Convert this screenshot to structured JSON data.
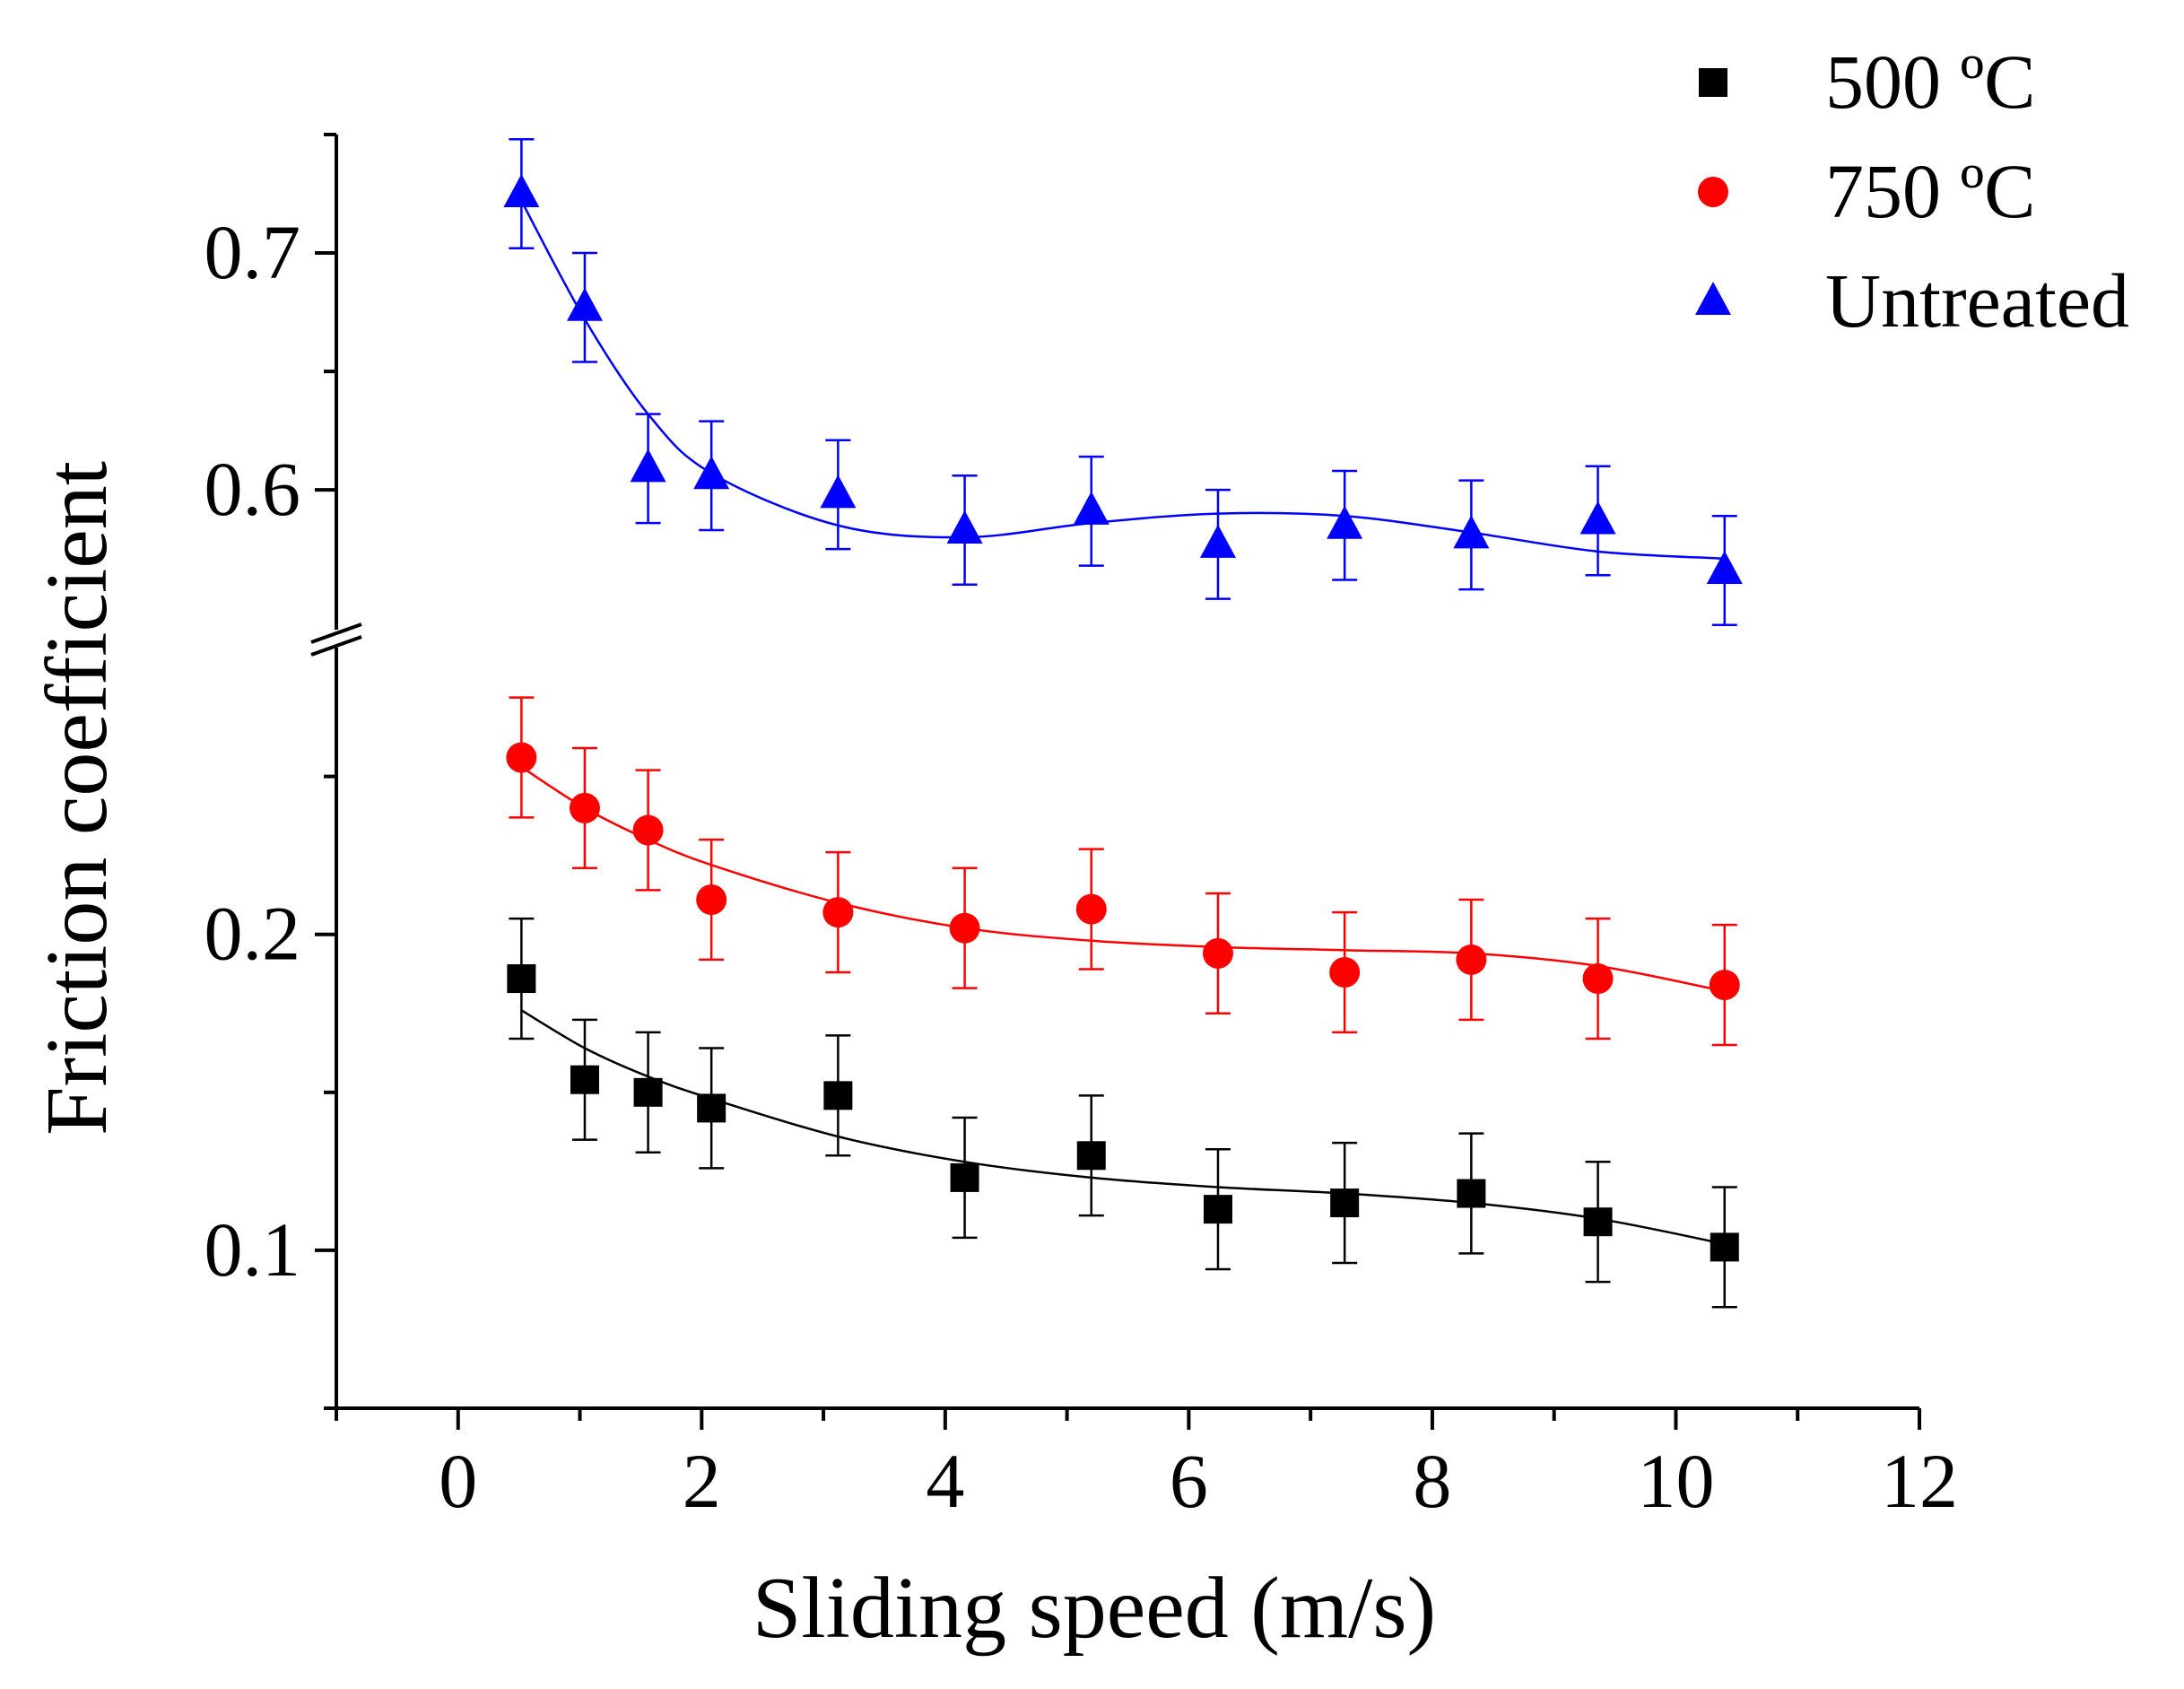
{
  "chart_data": {
    "type": "scatter",
    "xlabel": "Sliding speed (m/s)",
    "ylabel": "Friction coefficient",
    "xlim": [
      -1,
      12
    ],
    "xticks": [
      0,
      2,
      4,
      6,
      8,
      10,
      12
    ],
    "xtick_labels": [
      "0",
      "2",
      "4",
      "6",
      "8",
      "10",
      "12"
    ],
    "y_axis_break": true,
    "ylim_lower": [
      0.05,
      0.28
    ],
    "ylim_upper": [
      0.555,
      0.75
    ],
    "yticks": [
      0.1,
      0.2,
      0.6,
      0.7
    ],
    "ytick_labels": [
      "0.1",
      "0.2",
      "0.6",
      "0.7"
    ],
    "legend_position": "top-right",
    "series": [
      {
        "name": "500 ºC",
        "marker": "square",
        "color": "#000000",
        "x": [
          0.52,
          1.04,
          1.56,
          2.08,
          3.12,
          4.16,
          5.2,
          6.24,
          7.28,
          8.32,
          9.36,
          10.4
        ],
        "y": [
          0.186,
          0.154,
          0.15,
          0.145,
          0.149,
          0.123,
          0.13,
          0.113,
          0.115,
          0.118,
          0.109,
          0.101
        ],
        "err": [
          0.019,
          0.019,
          0.019,
          0.019,
          0.019,
          0.019,
          0.019,
          0.019,
          0.019,
          0.019,
          0.019,
          0.019
        ],
        "fit": [
          0.176,
          0.164,
          0.155,
          0.148,
          0.136,
          0.128,
          0.123,
          0.12,
          0.118,
          0.115,
          0.11,
          0.102
        ]
      },
      {
        "name": "750 ºC",
        "marker": "circle",
        "color": "#ff0000",
        "x": [
          0.52,
          1.04,
          1.56,
          2.08,
          3.12,
          4.16,
          5.2,
          6.24,
          7.28,
          8.32,
          9.36,
          10.4
        ],
        "y": [
          0.256,
          0.24,
          0.233,
          0.211,
          0.207,
          0.202,
          0.208,
          0.194,
          0.188,
          0.192,
          0.186,
          0.184
        ],
        "err": [
          0.019,
          0.019,
          0.019,
          0.019,
          0.019,
          0.019,
          0.019,
          0.019,
          0.019,
          0.019,
          0.019,
          0.019
        ],
        "fit": [
          0.253,
          0.24,
          0.23,
          0.222,
          0.21,
          0.202,
          0.198,
          0.196,
          0.195,
          0.194,
          0.19,
          0.182
        ]
      },
      {
        "name": "Untreated",
        "marker": "triangle",
        "color": "#0000ff",
        "x": [
          0.52,
          1.04,
          1.56,
          2.08,
          3.12,
          4.16,
          5.2,
          6.24,
          7.28,
          8.32,
          9.36,
          10.4
        ],
        "y": [
          0.725,
          0.677,
          0.609,
          0.606,
          0.598,
          0.583,
          0.591,
          0.577,
          0.585,
          0.581,
          0.587,
          0.566
        ],
        "err": [
          0.023,
          0.023,
          0.023,
          0.023,
          0.023,
          0.023,
          0.023,
          0.023,
          0.023,
          0.023,
          0.023,
          0.023
        ],
        "fit": [
          0.722,
          0.672,
          0.632,
          0.607,
          0.585,
          0.58,
          0.586,
          0.59,
          0.589,
          0.582,
          0.574,
          0.571
        ]
      }
    ]
  }
}
